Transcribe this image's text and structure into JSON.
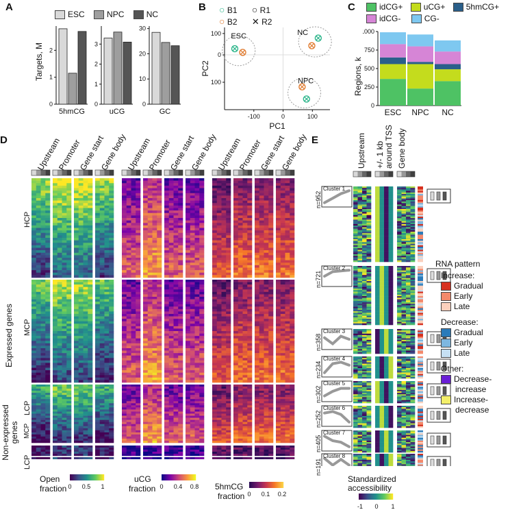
{
  "panelA": {
    "label": "A",
    "legend": [
      {
        "name": "ESC",
        "color": "#d9d9d9"
      },
      {
        "name": "NPC",
        "color": "#9e9e9e"
      },
      {
        "name": "NC",
        "color": "#555555"
      }
    ],
    "ylabel": "Targets, M",
    "chart_data": [
      {
        "type": "bar",
        "title": "5hmCG",
        "categories": [
          "ESC",
          "NPC",
          "NC"
        ],
        "values": [
          2.8,
          1.15,
          2.7
        ],
        "yticks": [
          "0",
          "1",
          "2"
        ],
        "ylim": [
          0,
          2.9
        ]
      },
      {
        "type": "bar",
        "title": "uCG",
        "categories": [
          "ESC",
          "NPC",
          "NC"
        ],
        "values": [
          3.3,
          3.6,
          3.1
        ],
        "yticks": [
          "0",
          "1",
          "2",
          "3"
        ],
        "ylim": [
          0,
          3.9
        ]
      },
      {
        "type": "bar",
        "title": "GC",
        "categories": [
          "ESC",
          "NPC",
          "NC"
        ],
        "values": [
          28.5,
          24.5,
          23.2
        ],
        "yticks": [
          "0",
          "10",
          "20",
          "30"
        ],
        "ylim": [
          0,
          31
        ]
      }
    ]
  },
  "panelB": {
    "label": "B",
    "legend": [
      "B1",
      "R1",
      "B2",
      "R2"
    ],
    "xlabel": "PC1",
    "ylabel": "PC2",
    "xticks": [
      "-100",
      "0",
      "100"
    ],
    "yticks": [
      "100",
      "0",
      "100"
    ],
    "groups": [
      "ESC",
      "NC",
      "NPC"
    ],
    "chart_data": {
      "type": "scatter",
      "points": [
        {
          "group": "ESC",
          "batch": "B1",
          "x": -165,
          "y": 20
        },
        {
          "group": "ESC",
          "batch": "B2",
          "x": -138,
          "y": 8
        },
        {
          "group": "NC",
          "batch": "B1",
          "x": 120,
          "y": 55
        },
        {
          "group": "NC",
          "batch": "B2",
          "x": 98,
          "y": 30
        },
        {
          "group": "NPC",
          "batch": "B2",
          "x": 65,
          "y": -105
        },
        {
          "group": "NPC",
          "batch": "B1",
          "x": 80,
          "y": -145
        }
      ]
    }
  },
  "panelC": {
    "label": "C",
    "legend": [
      {
        "name": "idCG+",
        "color": "#4ec264"
      },
      {
        "name": "uCG+",
        "color": "#c4dc1d"
      },
      {
        "name": "5hmCG+",
        "color": "#2a5f8a"
      },
      {
        "name": "idCG-",
        "color": "#d685d6"
      },
      {
        "name": "CG-",
        "color": "#7ec8f0"
      }
    ],
    "ylabel": "Regions, k",
    "yticks": [
      "0",
      "250",
      "500",
      "750",
      "1000"
    ],
    "chart_data": {
      "type": "bar",
      "categories": [
        "ESC",
        "NPC",
        "NC"
      ],
      "series": [
        {
          "name": "idCG+",
          "values": [
            360,
            230,
            330
          ]
        },
        {
          "name": "uCG+",
          "values": [
            200,
            330,
            160
          ]
        },
        {
          "name": "5hmCG+",
          "values": [
            90,
            30,
            70
          ]
        },
        {
          "name": "idCG-",
          "values": [
            180,
            210,
            170
          ]
        },
        {
          "name": "CG-",
          "values": [
            160,
            160,
            150
          ]
        }
      ],
      "ylim": [
        0,
        1000
      ]
    }
  },
  "panelD": {
    "label": "D",
    "col_headers": [
      "Upstream",
      "Promoter",
      "Gene start",
      "Gene body"
    ],
    "groups": [
      {
        "label": "HCP"
      },
      {
        "label": "MCP"
      },
      {
        "label": "LCP"
      },
      {
        "label": "MCP"
      },
      {
        "label": "LCP"
      }
    ],
    "expressed_label": "Expressed genes",
    "nonexpressed_label": "Non-expressed genes",
    "colorbars": [
      {
        "title1": "Open",
        "title2": "fraction",
        "ticks": [
          "0",
          "0.5",
          "1"
        ]
      },
      {
        "title1": "uCG",
        "title2": "fraction",
        "ticks": [
          "0",
          "0.4",
          "0.8"
        ]
      },
      {
        "title1": "5hmCG",
        "title2": "fraction",
        "ticks": [
          "0",
          "0.1",
          "0.2"
        ]
      }
    ]
  },
  "panelE": {
    "label": "E",
    "col_headers": [
      "Upstream",
      "+/- 1 kb",
      "around TSS",
      "Gene body"
    ],
    "clusters": [
      {
        "name": "Cluster 1",
        "n": "n=952"
      },
      {
        "name": "Cluster 2",
        "n": "n=721"
      },
      {
        "name": "Cluster 3",
        "n": "n=358"
      },
      {
        "name": "Cluster 4",
        "n": "n=234"
      },
      {
        "name": "Cluster 5",
        "n": "n=302"
      },
      {
        "name": "Cluster 6",
        "n": "n=252"
      },
      {
        "name": "Cluster 7",
        "n": "n=405"
      },
      {
        "name": "Cluster 8",
        "n": "n=191"
      }
    ],
    "rna_legend": {
      "title": "RNA pattern",
      "increase_title": "Increase:",
      "increase": [
        {
          "name": "Gradual",
          "color": "#d7301f"
        },
        {
          "name": "Early",
          "color": "#f4896b"
        },
        {
          "name": "Late",
          "color": "#fbd0bd"
        }
      ],
      "decrease_title": "Decrease:",
      "decrease": [
        {
          "name": "Gradual",
          "color": "#2b7bba"
        },
        {
          "name": "Early",
          "color": "#7db7e0"
        },
        {
          "name": "Late",
          "color": "#c6e0f3"
        }
      ],
      "other_title": "Other:",
      "other": [
        {
          "name": "Decrease-",
          "name2": "increase",
          "color": "#6a1fd6"
        },
        {
          "name": "Increase-",
          "name2": "decrease",
          "color": "#f3ef6a"
        }
      ]
    },
    "colorbar": {
      "title": "Standardized",
      "title2": "accessibility",
      "ticks": [
        "-1",
        "0",
        "1"
      ]
    }
  }
}
